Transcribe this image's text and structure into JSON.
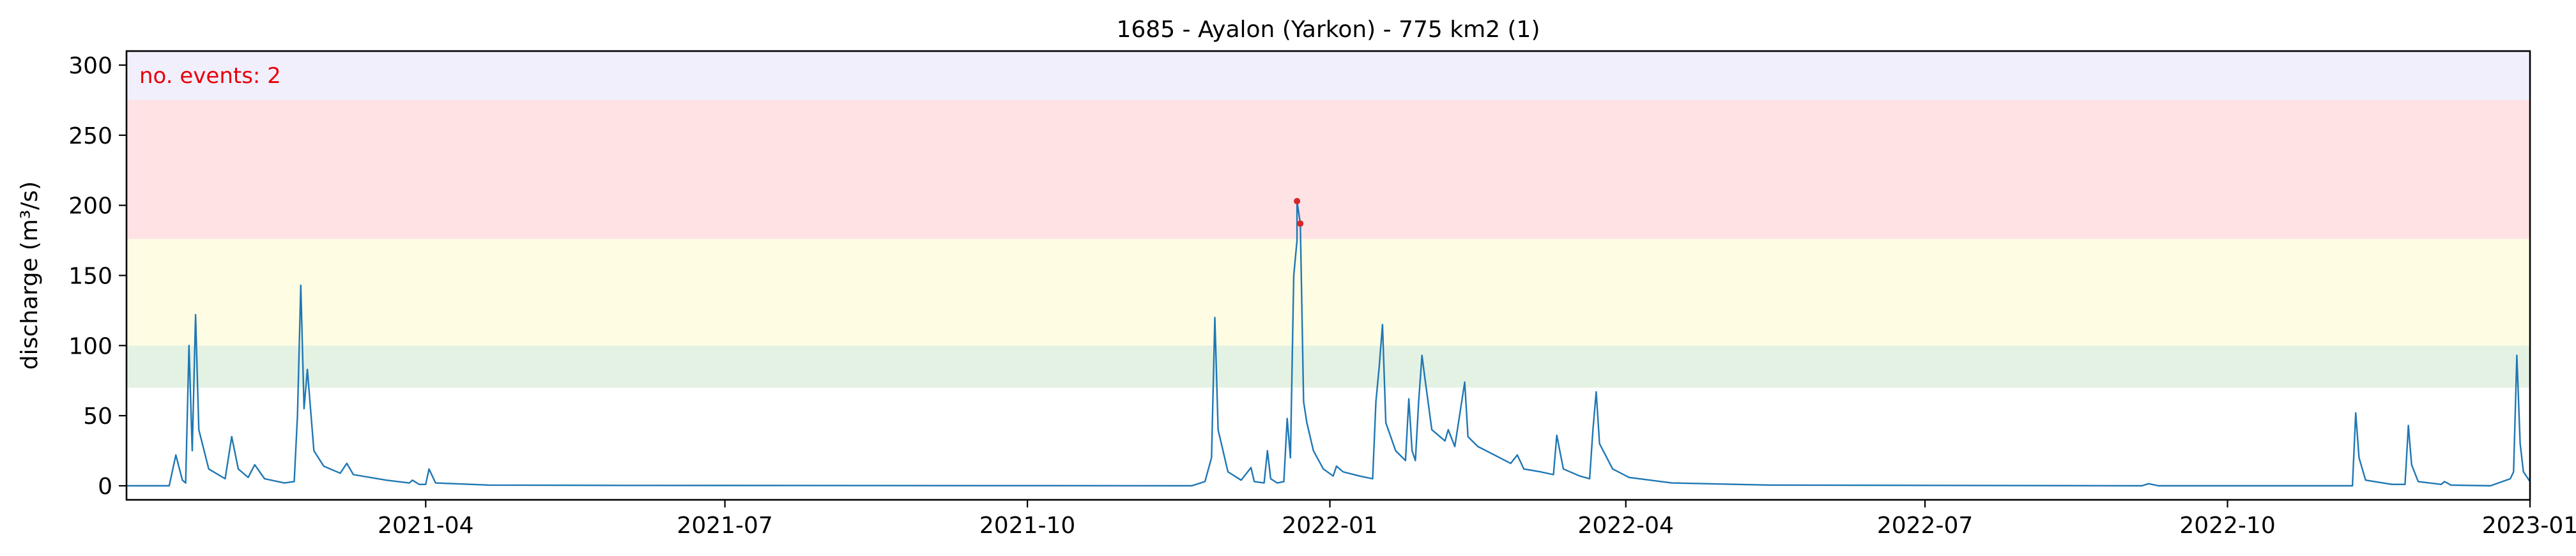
{
  "chart_data": {
    "type": "line",
    "title": "1685 - Ayalon (Yarkon) - 775 km2 (1)",
    "xlabel": "",
    "ylabel": "discharge (m³/s)",
    "annotation": "no. events: 2",
    "xlim": [
      "2020-12-31",
      "2023-01-01"
    ],
    "ylim": [
      -10,
      310
    ],
    "grid": false,
    "x_ticks": [
      {
        "date": "2021-04-01",
        "label": "2021-04"
      },
      {
        "date": "2021-07-01",
        "label": "2021-07"
      },
      {
        "date": "2021-10-01",
        "label": "2021-10"
      },
      {
        "date": "2022-01-01",
        "label": "2022-01"
      },
      {
        "date": "2022-04-01",
        "label": "2022-04"
      },
      {
        "date": "2022-07-01",
        "label": "2022-07"
      },
      {
        "date": "2022-10-01",
        "label": "2022-10"
      },
      {
        "date": "2023-01-01",
        "label": "2023-01"
      }
    ],
    "y_ticks": [
      0,
      50,
      100,
      150,
      200,
      250,
      300
    ],
    "threshold_bands": [
      {
        "from": 70,
        "to": 100,
        "color": "#e4f2e4"
      },
      {
        "from": 100,
        "to": 176,
        "color": "#fefde3"
      },
      {
        "from": 176,
        "to": 275,
        "color": "#fee2e4"
      },
      {
        "from": 275,
        "to": 310,
        "color": "#f1effb"
      }
    ],
    "series": [
      {
        "color": "#1f77b4",
        "points": [
          [
            "2020-12-31",
            0
          ],
          [
            "2021-01-13",
            0
          ],
          [
            "2021-01-15",
            22
          ],
          [
            "2021-01-17",
            4
          ],
          [
            "2021-01-18",
            2
          ],
          [
            "2021-01-19",
            100
          ],
          [
            "2021-01-20",
            25
          ],
          [
            "2021-01-21",
            122
          ],
          [
            "2021-01-22",
            40
          ],
          [
            "2021-01-25",
            12
          ],
          [
            "2021-01-30",
            5
          ],
          [
            "2021-02-01",
            35
          ],
          [
            "2021-02-03",
            12
          ],
          [
            "2021-02-06",
            6
          ],
          [
            "2021-02-08",
            15
          ],
          [
            "2021-02-11",
            5
          ],
          [
            "2021-02-17",
            2
          ],
          [
            "2021-02-20",
            3
          ],
          [
            "2021-02-21",
            50
          ],
          [
            "2021-02-22",
            143
          ],
          [
            "2021-02-23",
            55
          ],
          [
            "2021-02-24",
            83
          ],
          [
            "2021-02-26",
            25
          ],
          [
            "2021-03-01",
            14
          ],
          [
            "2021-03-06",
            9
          ],
          [
            "2021-03-08",
            16
          ],
          [
            "2021-03-10",
            8
          ],
          [
            "2021-03-20",
            4
          ],
          [
            "2021-03-27",
            2
          ],
          [
            "2021-03-28",
            4
          ],
          [
            "2021-03-30",
            1
          ],
          [
            "2021-04-01",
            1
          ],
          [
            "2021-04-02",
            12
          ],
          [
            "2021-04-04",
            2
          ],
          [
            "2021-04-20",
            0.5
          ],
          [
            "2021-06-01",
            0.3
          ],
          [
            "2021-11-20",
            0
          ],
          [
            "2021-11-24",
            3
          ],
          [
            "2021-11-26",
            20
          ],
          [
            "2021-11-27",
            120
          ],
          [
            "2021-11-28",
            40
          ],
          [
            "2021-12-01",
            10
          ],
          [
            "2021-12-05",
            4
          ],
          [
            "2021-12-08",
            13
          ],
          [
            "2021-12-09",
            3
          ],
          [
            "2021-12-12",
            2
          ],
          [
            "2021-12-13",
            25
          ],
          [
            "2021-12-14",
            5
          ],
          [
            "2021-12-16",
            2
          ],
          [
            "2021-12-18",
            3
          ],
          [
            "2021-12-19",
            48
          ],
          [
            "2021-12-20",
            20
          ],
          [
            "2021-12-21",
            150
          ],
          [
            "2021-12-22",
            175
          ],
          [
            "2021-12-22",
            203
          ],
          [
            "2021-12-23",
            187
          ],
          [
            "2021-12-24",
            60
          ],
          [
            "2021-12-25",
            45
          ],
          [
            "2021-12-27",
            25
          ],
          [
            "2021-12-30",
            12
          ],
          [
            "2022-01-02",
            7
          ],
          [
            "2022-01-03",
            14
          ],
          [
            "2022-01-05",
            10
          ],
          [
            "2022-01-10",
            7
          ],
          [
            "2022-01-14",
            5
          ],
          [
            "2022-01-15",
            60
          ],
          [
            "2022-01-16",
            85
          ],
          [
            "2022-01-17",
            115
          ],
          [
            "2022-01-18",
            45
          ],
          [
            "2022-01-21",
            25
          ],
          [
            "2022-01-24",
            18
          ],
          [
            "2022-01-25",
            62
          ],
          [
            "2022-01-26",
            25
          ],
          [
            "2022-01-27",
            18
          ],
          [
            "2022-01-28",
            60
          ],
          [
            "2022-01-29",
            93
          ],
          [
            "2022-01-30",
            75
          ],
          [
            "2022-02-01",
            40
          ],
          [
            "2022-02-05",
            32
          ],
          [
            "2022-02-06",
            40
          ],
          [
            "2022-02-08",
            28
          ],
          [
            "2022-02-11",
            74
          ],
          [
            "2022-02-12",
            35
          ],
          [
            "2022-02-15",
            28
          ],
          [
            "2022-02-20",
            22
          ],
          [
            "2022-02-25",
            16
          ],
          [
            "2022-02-27",
            22
          ],
          [
            "2022-03-01",
            12
          ],
          [
            "2022-03-06",
            10
          ],
          [
            "2022-03-10",
            8
          ],
          [
            "2022-03-11",
            36
          ],
          [
            "2022-03-13",
            12
          ],
          [
            "2022-03-18",
            7
          ],
          [
            "2022-03-21",
            5
          ],
          [
            "2022-03-22",
            40
          ],
          [
            "2022-03-23",
            67
          ],
          [
            "2022-03-24",
            30
          ],
          [
            "2022-03-28",
            12
          ],
          [
            "2022-04-02",
            6
          ],
          [
            "2022-04-15",
            2
          ],
          [
            "2022-05-15",
            0.5
          ],
          [
            "2022-09-05",
            0
          ],
          [
            "2022-09-07",
            1.5
          ],
          [
            "2022-09-10",
            0
          ],
          [
            "2022-11-08",
            0
          ],
          [
            "2022-11-09",
            52
          ],
          [
            "2022-11-10",
            20
          ],
          [
            "2022-11-12",
            4
          ],
          [
            "2022-11-20",
            1
          ],
          [
            "2022-11-24",
            1
          ],
          [
            "2022-11-25",
            43
          ],
          [
            "2022-11-26",
            15
          ],
          [
            "2022-11-28",
            3
          ],
          [
            "2022-12-05",
            1
          ],
          [
            "2022-12-06",
            3
          ],
          [
            "2022-12-08",
            0.5
          ],
          [
            "2022-12-20",
            0
          ],
          [
            "2022-12-26",
            5
          ],
          [
            "2022-12-27",
            10
          ],
          [
            "2022-12-28",
            93
          ],
          [
            "2022-12-29",
            30
          ],
          [
            "2022-12-30",
            10
          ],
          [
            "2023-01-01",
            3
          ]
        ]
      }
    ],
    "events": [
      {
        "date": "2021-12-22",
        "value": 203,
        "color": "#d62728"
      },
      {
        "date": "2021-12-23",
        "value": 187,
        "color": "#d62728"
      }
    ]
  }
}
